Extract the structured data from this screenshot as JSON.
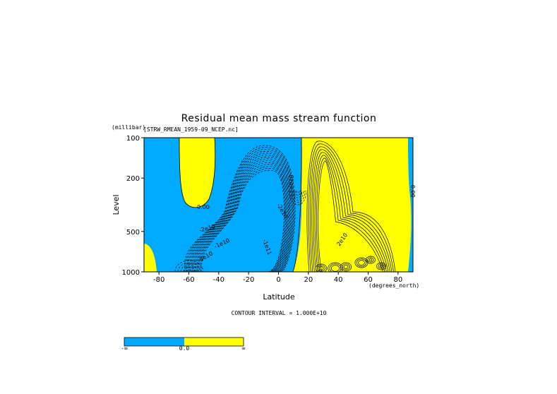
{
  "chart_data": {
    "type": "heatmap",
    "title": "Residual mean mass stream function",
    "dataset_label": "[STRW_RMEAN_1959-09_NCEP.nc]",
    "xlabel": "Latitude",
    "x_units": "(degrees_north)",
    "ylabel": "Level",
    "y_units": "(millibar)",
    "x_ticks": [
      "-80",
      "-60",
      "-40",
      "-20",
      "0",
      "20",
      "40",
      "60",
      "80"
    ],
    "x_tick_values": [
      -80,
      -60,
      -40,
      -20,
      0,
      20,
      40,
      60,
      80
    ],
    "y_ticks": [
      "100",
      "200",
      "500",
      "1000"
    ],
    "y_tick_values": [
      100,
      200,
      500,
      1000
    ],
    "y_scale": "log",
    "xlim": [
      -90,
      90
    ],
    "ylim": [
      1000,
      100
    ],
    "contour_labels": [
      "0.00",
      "-2e10",
      "-1e10",
      "-8e10",
      "-1e11",
      "-2e10",
      "2e10",
      "2e10",
      "0.00"
    ],
    "contour_interval": "CONTOUR INTERVAL = 1.000E+10",
    "colorbar": {
      "tick_labels": [
        "-∞",
        "0.0",
        "∞"
      ],
      "colors": [
        "#00aaff",
        "#ffff00"
      ]
    },
    "fill_colors": {
      "negative": "#00aaff",
      "positive": "#ffff00"
    }
  }
}
